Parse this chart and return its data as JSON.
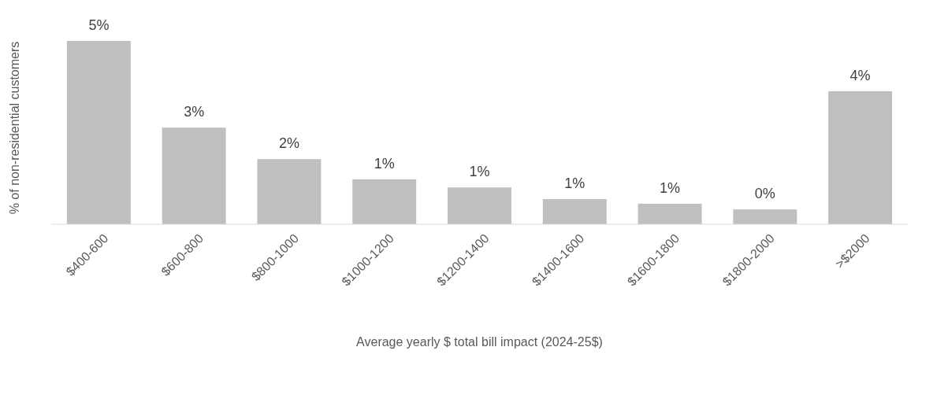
{
  "chart_data": {
    "type": "bar",
    "xlabel": "Average yearly $ total bill impact (2024-25$)",
    "ylabel": "% of non-residential customers",
    "categories": [
      "$400-600",
      "$600-800",
      "$800-1000",
      "$1000-1200",
      "$1200-1400",
      "$1400-1600",
      "$1600-1800",
      "$1800-2000",
      ">$2000"
    ],
    "values": [
      5.18,
      2.73,
      1.84,
      1.27,
      1.04,
      0.71,
      0.58,
      0.42,
      3.76
    ],
    "value_labels": [
      "5%",
      "3%",
      "2%",
      "1%",
      "1%",
      "1%",
      "1%",
      "0%",
      "4%"
    ],
    "color": "#bfbfbf"
  }
}
